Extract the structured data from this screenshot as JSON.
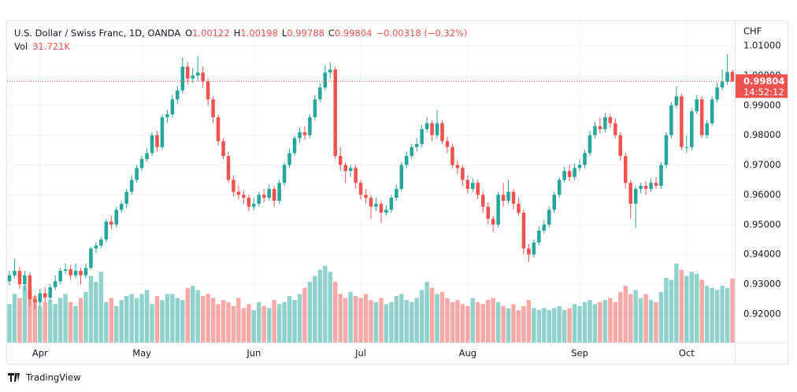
{
  "chart_data": {
    "type": "candlestick",
    "title": "U.S. Dollar / Swiss Franc, 1D, OANDA",
    "ohlc_labels": [
      "O",
      "H",
      "L",
      "C"
    ],
    "change": "−0.00318 (−0.32%)",
    "volume_title": "Vol",
    "volume_label": "31.721K",
    "y_unit": "CHF",
    "countdown": "14:52:12",
    "brand": "TradingView",
    "up_color": "#26a69a",
    "down_color": "#ef5350",
    "ylim": [
      0.9105,
      1.0182
    ],
    "yticks": [
      {
        "value": 1.01,
        "label": "1.01000"
      },
      {
        "value": 1.0,
        "label": "1.00000"
      },
      {
        "value": 0.99,
        "label": "0.99000"
      },
      {
        "value": 0.98,
        "label": "0.98000"
      },
      {
        "value": 0.97,
        "label": "0.97000"
      },
      {
        "value": 0.96,
        "label": "0.96000"
      },
      {
        "value": 0.95,
        "label": "0.95000"
      },
      {
        "value": 0.94,
        "label": "0.94000"
      },
      {
        "value": 0.93,
        "label": "0.93000"
      },
      {
        "value": 0.92,
        "label": "0.92000"
      }
    ],
    "xticks": [
      {
        "value": 6,
        "label": "Apr"
      },
      {
        "value": 26,
        "label": "May"
      },
      {
        "value": 48,
        "label": "Jun"
      },
      {
        "value": 69,
        "label": "Jul"
      },
      {
        "value": 90,
        "label": "Aug"
      },
      {
        "value": 112,
        "label": "Sep"
      },
      {
        "value": 133,
        "label": "Oct"
      }
    ],
    "grid": true,
    "ohlc": [
      [
        0.931,
        0.9345,
        0.9295,
        0.933
      ],
      [
        0.933,
        0.9385,
        0.932,
        0.9345
      ],
      [
        0.9345,
        0.936,
        0.9285,
        0.93
      ],
      [
        0.93,
        0.9345,
        0.928,
        0.933
      ],
      [
        0.933,
        0.934,
        0.923,
        0.925
      ],
      [
        0.925,
        0.9265,
        0.9215,
        0.924
      ],
      [
        0.924,
        0.9285,
        0.9225,
        0.927
      ],
      [
        0.927,
        0.929,
        0.924,
        0.9255
      ],
      [
        0.9255,
        0.93,
        0.9245,
        0.929
      ],
      [
        0.929,
        0.933,
        0.928,
        0.931
      ],
      [
        0.931,
        0.9355,
        0.93,
        0.9345
      ],
      [
        0.9345,
        0.937,
        0.9335,
        0.935
      ],
      [
        0.935,
        0.9365,
        0.9315,
        0.933
      ],
      [
        0.933,
        0.937,
        0.932,
        0.9345
      ],
      [
        0.9345,
        0.9355,
        0.93,
        0.933
      ],
      [
        0.933,
        0.937,
        0.932,
        0.9355
      ],
      [
        0.9355,
        0.9425,
        0.935,
        0.942
      ],
      [
        0.942,
        0.944,
        0.9405,
        0.943
      ],
      [
        0.943,
        0.946,
        0.942,
        0.945
      ],
      [
        0.945,
        0.952,
        0.944,
        0.951
      ],
      [
        0.951,
        0.953,
        0.9485,
        0.95
      ],
      [
        0.95,
        0.956,
        0.949,
        0.955
      ],
      [
        0.955,
        0.958,
        0.954,
        0.957
      ],
      [
        0.957,
        0.962,
        0.9555,
        0.961
      ],
      [
        0.961,
        0.9665,
        0.96,
        0.965
      ],
      [
        0.965,
        0.97,
        0.964,
        0.969
      ],
      [
        0.969,
        0.973,
        0.968,
        0.972
      ],
      [
        0.972,
        0.9755,
        0.971,
        0.974
      ],
      [
        0.974,
        0.981,
        0.973,
        0.98
      ],
      [
        0.98,
        0.9815,
        0.9745,
        0.976
      ],
      [
        0.976,
        0.987,
        0.975,
        0.986
      ],
      [
        0.986,
        0.9885,
        0.984,
        0.987
      ],
      [
        0.987,
        0.9935,
        0.986,
        0.992
      ],
      [
        0.992,
        0.9965,
        0.9905,
        0.995
      ],
      [
        0.995,
        1.006,
        0.994,
        1.003
      ],
      [
        1.003,
        1.0045,
        0.997,
        0.999
      ],
      [
        0.999,
        1.0025,
        0.9975,
        1.0
      ],
      [
        1.0,
        1.0065,
        0.998,
        1.001
      ],
      [
        1.001,
        1.003,
        0.996,
        0.998
      ],
      [
        0.998,
        0.999,
        0.99,
        0.992
      ],
      [
        0.992,
        0.993,
        0.984,
        0.986
      ],
      [
        0.986,
        0.987,
        0.9765,
        0.978
      ],
      [
        0.978,
        0.979,
        0.972,
        0.973
      ],
      [
        0.973,
        0.9745,
        0.964,
        0.965
      ],
      [
        0.965,
        0.9665,
        0.9595,
        0.961
      ],
      [
        0.961,
        0.963,
        0.9585,
        0.96
      ],
      [
        0.96,
        0.9615,
        0.957,
        0.959
      ],
      [
        0.959,
        0.96,
        0.9545,
        0.956
      ],
      [
        0.956,
        0.959,
        0.955,
        0.957
      ],
      [
        0.957,
        0.961,
        0.956,
        0.96
      ],
      [
        0.96,
        0.962,
        0.9575,
        0.959
      ],
      [
        0.959,
        0.9635,
        0.958,
        0.962
      ],
      [
        0.962,
        0.963,
        0.956,
        0.958
      ],
      [
        0.958,
        0.965,
        0.957,
        0.964
      ],
      [
        0.964,
        0.971,
        0.963,
        0.97
      ],
      [
        0.97,
        0.9755,
        0.969,
        0.974
      ],
      [
        0.974,
        0.98,
        0.973,
        0.979
      ],
      [
        0.979,
        0.9825,
        0.9775,
        0.981
      ],
      [
        0.981,
        0.983,
        0.9785,
        0.98
      ],
      [
        0.98,
        0.987,
        0.979,
        0.986
      ],
      [
        0.986,
        0.9935,
        0.985,
        0.992
      ],
      [
        0.992,
        0.9975,
        0.991,
        0.996
      ],
      [
        0.996,
        1.0035,
        0.995,
        1.001
      ],
      [
        1.001,
        1.0045,
        0.999,
        1.002
      ],
      [
        1.002,
        1.003,
        0.972,
        0.973
      ],
      [
        0.973,
        0.976,
        0.968,
        0.97
      ],
      [
        0.97,
        0.971,
        0.964,
        0.968
      ],
      [
        0.968,
        0.97,
        0.966,
        0.969
      ],
      [
        0.969,
        0.97,
        0.962,
        0.964
      ],
      [
        0.964,
        0.965,
        0.9585,
        0.96
      ],
      [
        0.96,
        0.962,
        0.957,
        0.959
      ],
      [
        0.959,
        0.96,
        0.952,
        0.956
      ],
      [
        0.956,
        0.959,
        0.9545,
        0.957
      ],
      [
        0.957,
        0.958,
        0.9505,
        0.954
      ],
      [
        0.954,
        0.9565,
        0.953,
        0.955
      ],
      [
        0.955,
        0.96,
        0.954,
        0.959
      ],
      [
        0.959,
        0.9635,
        0.958,
        0.962
      ],
      [
        0.962,
        0.971,
        0.961,
        0.97
      ],
      [
        0.97,
        0.9745,
        0.969,
        0.973
      ],
      [
        0.973,
        0.977,
        0.972,
        0.976
      ],
      [
        0.976,
        0.979,
        0.9745,
        0.977
      ],
      [
        0.977,
        0.9835,
        0.976,
        0.982
      ],
      [
        0.982,
        0.986,
        0.981,
        0.984
      ],
      [
        0.984,
        0.985,
        0.978,
        0.98
      ],
      [
        0.98,
        0.9885,
        0.979,
        0.984
      ],
      [
        0.984,
        0.985,
        0.977,
        0.978
      ],
      [
        0.978,
        0.9795,
        0.974,
        0.976
      ],
      [
        0.976,
        0.977,
        0.969,
        0.97
      ],
      [
        0.97,
        0.9715,
        0.967,
        0.969
      ],
      [
        0.969,
        0.97,
        0.963,
        0.965
      ],
      [
        0.965,
        0.9665,
        0.9605,
        0.962
      ],
      [
        0.962,
        0.9655,
        0.961,
        0.964
      ],
      [
        0.964,
        0.965,
        0.9585,
        0.96
      ],
      [
        0.96,
        0.961,
        0.954,
        0.956
      ],
      [
        0.956,
        0.9575,
        0.95,
        0.952
      ],
      [
        0.952,
        0.953,
        0.9475,
        0.95
      ],
      [
        0.95,
        0.961,
        0.949,
        0.96
      ],
      [
        0.96,
        0.964,
        0.956,
        0.958
      ],
      [
        0.958,
        0.965,
        0.957,
        0.961
      ],
      [
        0.961,
        0.962,
        0.955,
        0.957
      ],
      [
        0.957,
        0.959,
        0.953,
        0.954
      ],
      [
        0.954,
        0.955,
        0.94,
        0.942
      ],
      [
        0.942,
        0.9435,
        0.9375,
        0.94
      ],
      [
        0.94,
        0.945,
        0.939,
        0.944
      ],
      [
        0.944,
        0.9495,
        0.943,
        0.948
      ],
      [
        0.948,
        0.9515,
        0.947,
        0.95
      ],
      [
        0.95,
        0.956,
        0.949,
        0.955
      ],
      [
        0.955,
        0.961,
        0.954,
        0.96
      ],
      [
        0.96,
        0.966,
        0.959,
        0.965
      ],
      [
        0.965,
        0.9695,
        0.964,
        0.968
      ],
      [
        0.968,
        0.97,
        0.9645,
        0.966
      ],
      [
        0.966,
        0.9705,
        0.965,
        0.969
      ],
      [
        0.969,
        0.972,
        0.968,
        0.97
      ],
      [
        0.97,
        0.975,
        0.969,
        0.974
      ],
      [
        0.974,
        0.9815,
        0.973,
        0.98
      ],
      [
        0.98,
        0.9845,
        0.979,
        0.983
      ],
      [
        0.983,
        0.986,
        0.9805,
        0.982
      ],
      [
        0.982,
        0.9875,
        0.981,
        0.986
      ],
      [
        0.986,
        0.987,
        0.9825,
        0.984
      ],
      [
        0.984,
        0.9855,
        0.979,
        0.98
      ],
      [
        0.98,
        0.981,
        0.9715,
        0.973
      ],
      [
        0.973,
        0.974,
        0.962,
        0.964
      ],
      [
        0.964,
        0.965,
        0.952,
        0.957
      ],
      [
        0.957,
        0.963,
        0.949,
        0.962
      ],
      [
        0.962,
        0.964,
        0.9605,
        0.963
      ],
      [
        0.963,
        0.9645,
        0.96,
        0.962
      ],
      [
        0.962,
        0.9655,
        0.961,
        0.964
      ],
      [
        0.964,
        0.966,
        0.962,
        0.963
      ],
      [
        0.963,
        0.971,
        0.962,
        0.97
      ],
      [
        0.97,
        0.981,
        0.969,
        0.98
      ],
      [
        0.98,
        0.991,
        0.979,
        0.99
      ],
      [
        0.99,
        0.9965,
        0.989,
        0.993
      ],
      [
        0.993,
        0.994,
        0.975,
        0.976
      ],
      [
        0.976,
        0.98,
        0.974,
        0.976
      ],
      [
        0.976,
        0.989,
        0.975,
        0.988
      ],
      [
        0.988,
        0.9935,
        0.987,
        0.992
      ],
      [
        0.992,
        0.993,
        0.979,
        0.98
      ],
      [
        0.98,
        0.985,
        0.979,
        0.984
      ],
      [
        0.984,
        0.993,
        0.983,
        0.992
      ],
      [
        0.992,
        0.9975,
        0.991,
        0.996
      ],
      [
        0.996,
        1.002,
        0.995,
        0.998
      ],
      [
        0.998,
        1.007,
        0.997,
        1.0012
      ],
      [
        1.00122,
        1.00198,
        0.99788,
        0.99804
      ]
    ],
    "volume": [
      19000,
      24000,
      22000,
      28000,
      26000,
      23000,
      18000,
      20000,
      21000,
      19000,
      22000,
      24000,
      20000,
      18000,
      22000,
      25000,
      33000,
      30000,
      35000,
      20000,
      22000,
      18000,
      21000,
      23000,
      24000,
      22000,
      24000,
      26000,
      19000,
      23000,
      21000,
      24000,
      24000,
      22000,
      21000,
      27000,
      28000,
      26000,
      23000,
      24000,
      22000,
      19000,
      21000,
      20000,
      18000,
      22000,
      17000,
      19000,
      16000,
      20000,
      18000,
      17000,
      21000,
      19000,
      20000,
      23000,
      21000,
      24000,
      27000,
      30000,
      33000,
      36000,
      38000,
      35000,
      30000,
      24000,
      22000,
      25000,
      23000,
      22000,
      24000,
      21000,
      20000,
      22000,
      19000,
      20000,
      23000,
      24000,
      21000,
      20000,
      22000,
      26000,
      30000,
      27000,
      24000,
      25000,
      22000,
      20000,
      21000,
      19000,
      18000,
      22000,
      20000,
      19000,
      21000,
      22000,
      20000,
      18000,
      17000,
      19000,
      16000,
      18000,
      21000,
      17000,
      16000,
      17000,
      16000,
      17000,
      18000,
      16000,
      17000,
      19000,
      18000,
      20000,
      21000,
      19000,
      20000,
      21000,
      22000,
      20000,
      25000,
      28000,
      24000,
      26000,
      22000,
      24000,
      21000,
      20000,
      25000,
      32000,
      31000,
      39000,
      36000,
      33000,
      35000,
      34000,
      31000,
      28000,
      27000,
      26000,
      28000,
      27000,
      31721
    ]
  }
}
